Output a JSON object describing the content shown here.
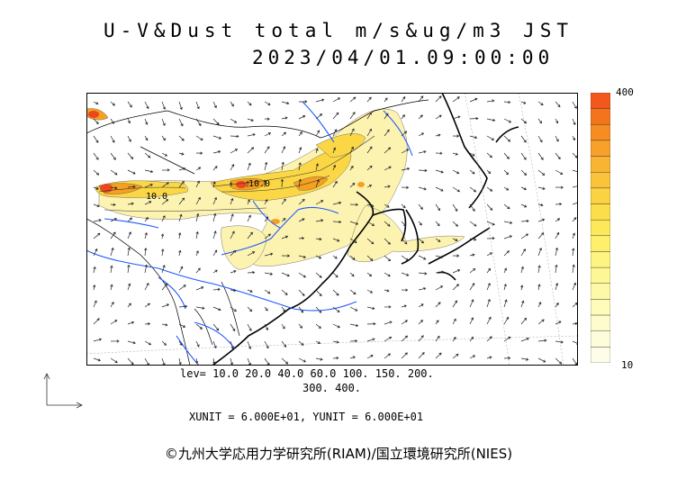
{
  "title": {
    "line1": "U-V&Dust total m/s&ug/m3 JST",
    "line2": "2023/04/01.09:00:00"
  },
  "legend": {
    "max_label": "400",
    "min_label": "10",
    "colors": [
      "#f2581c",
      "#f4741e",
      "#f68c22",
      "#f8a12a",
      "#f9b432",
      "#fac43a",
      "#fbd241",
      "#fcde4a",
      "#fde85a",
      "#fef06c",
      "#fef482",
      "#fef795",
      "#fef9a8",
      "#fefbbb",
      "#fefccc",
      "#fefddb",
      "#fefee8"
    ]
  },
  "contour_labels": {
    "a": "10.0",
    "b": "10.0"
  },
  "levels": {
    "line1": "lev= 10.0 20.0 40.0 60.0 100. 150. 200.",
    "line2": "300. 400."
  },
  "units": "XUNIT = 6.000E+01, YUNIT = 6.000E+01",
  "copyright": "©九州大学応用力学研究所(RIAM)/国立環境研究所(NIES)",
  "colors": {
    "dust_light": "#fdf3b0",
    "dust_mid": "#fbd745",
    "dust_high": "#f5a020",
    "dust_peak": "#e8481c",
    "rivers": "#1e5aff",
    "coast": "#000000"
  }
}
